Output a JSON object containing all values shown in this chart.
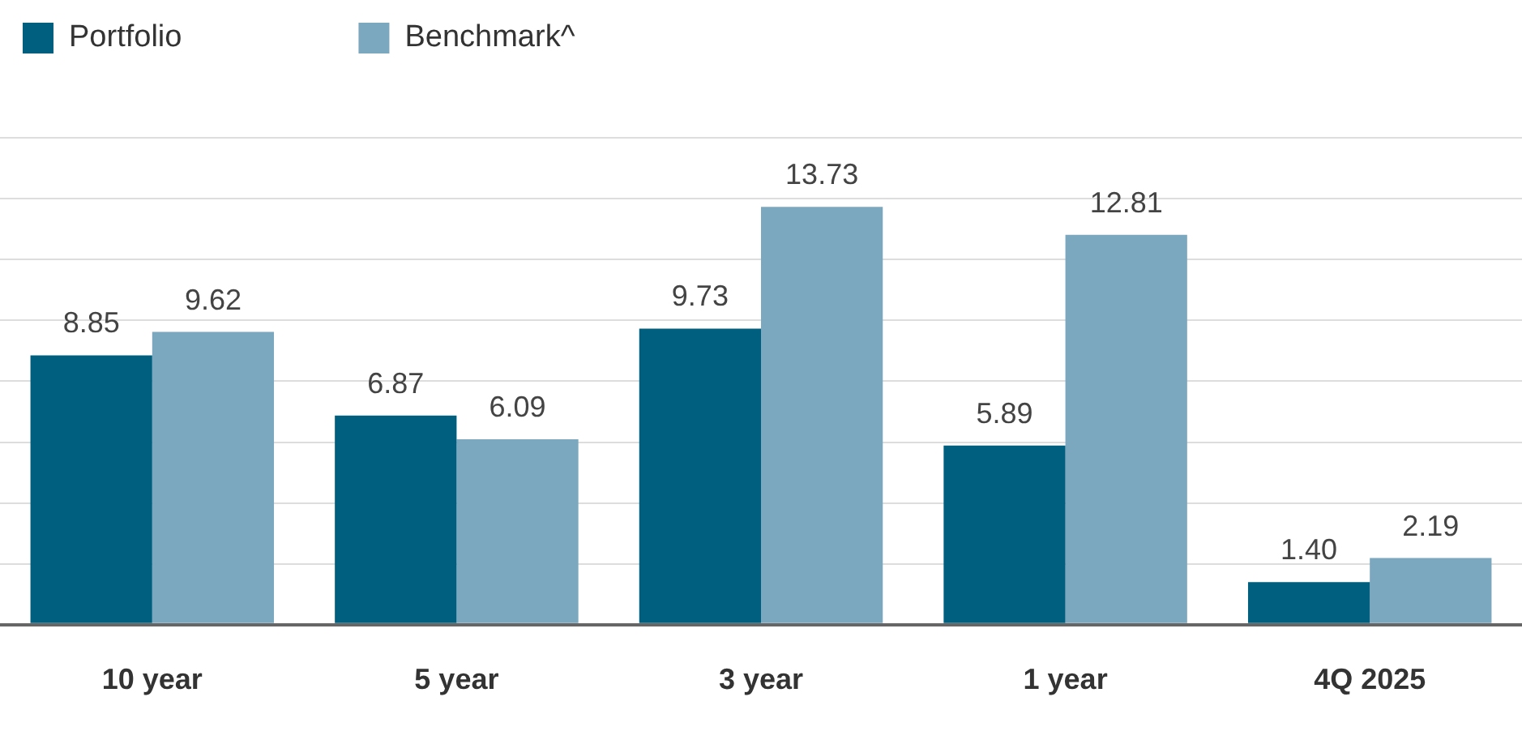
{
  "chart_data": {
    "type": "bar",
    "categories": [
      "10 year",
      "5 year",
      "3 year",
      "1 year",
      "4Q 2025"
    ],
    "series": [
      {
        "name": "Portfolio",
        "color": "#005f7e",
        "values": [
          8.85,
          6.87,
          9.73,
          5.89,
          1.4
        ],
        "value_labels": [
          "8.85",
          "6.87",
          "9.73",
          "5.89",
          "1.40"
        ]
      },
      {
        "name": "Benchmark^",
        "color": "#7ba7bf",
        "values": [
          9.62,
          6.09,
          13.73,
          12.81,
          2.19
        ],
        "value_labels": [
          "9.62",
          "6.09",
          "13.73",
          "12.81",
          "2.19"
        ]
      }
    ],
    "ylim": [
      0,
      16
    ],
    "yticks": [
      {
        "value": 0,
        "label": null
      },
      {
        "value": 2,
        "label": null
      },
      {
        "value": 4,
        "label": null
      },
      {
        "value": 6,
        "label": null
      },
      {
        "value": 8,
        "label": null
      },
      {
        "value": 10,
        "label": null
      },
      {
        "value": 12,
        "label": null
      },
      {
        "value": 14,
        "label": null
      },
      {
        "value": 16,
        "label": null
      }
    ],
    "grid": "y",
    "legend": "top left",
    "tick_labels": "x"
  }
}
